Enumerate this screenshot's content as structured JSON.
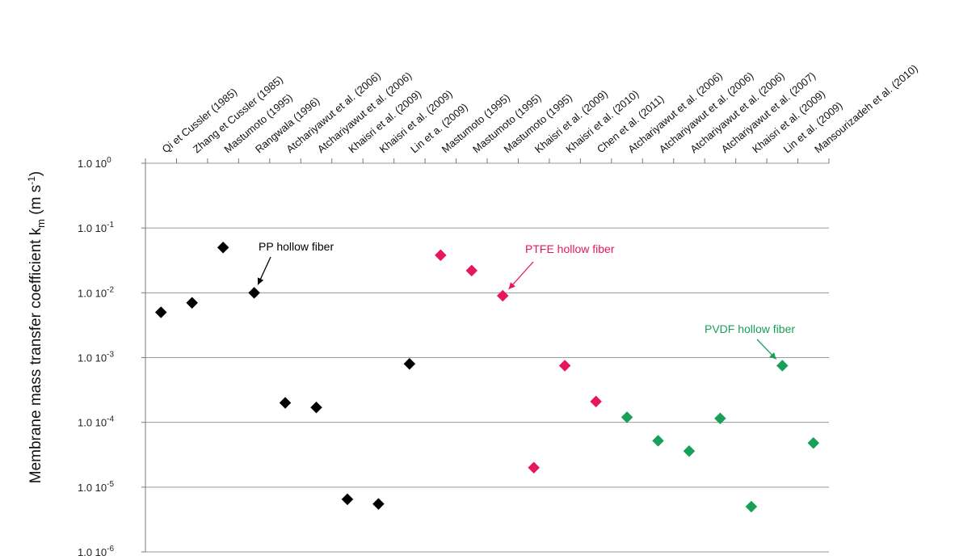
{
  "chart_data": {
    "type": "scatter",
    "title": "",
    "xlabel": "",
    "ylabel": {
      "main": "Membrane  mass transfer coefficient k",
      "sub": "m",
      "unit_pre": " (m s",
      "unit_sup": "-1",
      "unit_post": ")"
    },
    "y_scale": "log",
    "ylim": [
      1e-06,
      1
    ],
    "y_ticks": [
      {
        "value": 1.0,
        "base": "1.0 10",
        "exp": "0"
      },
      {
        "value": 0.1,
        "base": "1.0 10",
        "exp": "-1"
      },
      {
        "value": 0.01,
        "base": "1.0 10",
        "exp": "-2"
      },
      {
        "value": 0.001,
        "base": "1.0 10",
        "exp": "-3"
      },
      {
        "value": 0.0001,
        "base": "1.0 10",
        "exp": "-4"
      },
      {
        "value": 1e-05,
        "base": "1.0 10",
        "exp": "-5"
      },
      {
        "value": 1e-06,
        "base": "1.0 10",
        "exp": "-6"
      }
    ],
    "grid": true,
    "categories": [
      "Qi et Cussler (1985)",
      "Zhang et Cussler (1985)",
      "Mastumoto (1995)",
      "Rangwala (1996)",
      "Atchariyawut et al. (2006)",
      "Atchariyawut et al. (2006)",
      "Khaisri et al. (2009)",
      "Khaisri et al. (2009)",
      "Lin et a. (2009)",
      "Mastumoto (1995)",
      "Mastumoto (1995)",
      "Mastumoto (1995)",
      "Khaisri et al. (2009)",
      "Khaisri et al. (2010)",
      "Chen et al. (2011)",
      "Atchariyawut et al. (2006)",
      "Atchariyawut et al. (2006)",
      "Atchariyawut et al. (2006)",
      "Atchariyawut et al. (2007)",
      "Khaisri et al. (2009)",
      "Lin et al. (2009)",
      "Mansourizadeh et al. (2010)"
    ],
    "series": [
      {
        "name": "PP hollow fiber",
        "color": "#000000",
        "points": [
          {
            "x": 0,
            "y": 0.005
          },
          {
            "x": 1,
            "y": 0.007
          },
          {
            "x": 2,
            "y": 0.05
          },
          {
            "x": 3,
            "y": 0.01
          },
          {
            "x": 4,
            "y": 0.0002
          },
          {
            "x": 5,
            "y": 0.00017
          },
          {
            "x": 6,
            "y": 6.5e-06
          },
          {
            "x": 7,
            "y": 5.5e-06
          },
          {
            "x": 8,
            "y": 0.0008
          }
        ]
      },
      {
        "name": "PTFE hollow fiber",
        "color": "#e6185a",
        "points": [
          {
            "x": 9,
            "y": 0.038
          },
          {
            "x": 10,
            "y": 0.022
          },
          {
            "x": 11,
            "y": 0.009
          },
          {
            "x": 12,
            "y": 2e-05
          },
          {
            "x": 13,
            "y": 0.00075
          },
          {
            "x": 14,
            "y": 0.00021
          }
        ]
      },
      {
        "name": "PVDF hollow fiber",
        "color": "#18a058",
        "points": [
          {
            "x": 15,
            "y": 0.00012
          },
          {
            "x": 16,
            "y": 5.2e-05
          },
          {
            "x": 17,
            "y": 3.6e-05
          },
          {
            "x": 18,
            "y": 0.000115
          },
          {
            "x": 19,
            "y": 5e-06
          },
          {
            "x": 20,
            "y": 0.00075
          },
          {
            "x": 21,
            "y": 4.8e-05
          }
        ]
      }
    ],
    "annotations": [
      {
        "text": "PP hollow fiber",
        "series": 0,
        "target_point": 3
      },
      {
        "text": "PTFE hollow fiber",
        "series": 1,
        "target_point": 2
      },
      {
        "text": "PVDF hollow fiber",
        "series": 2,
        "target_point": 5
      }
    ]
  }
}
